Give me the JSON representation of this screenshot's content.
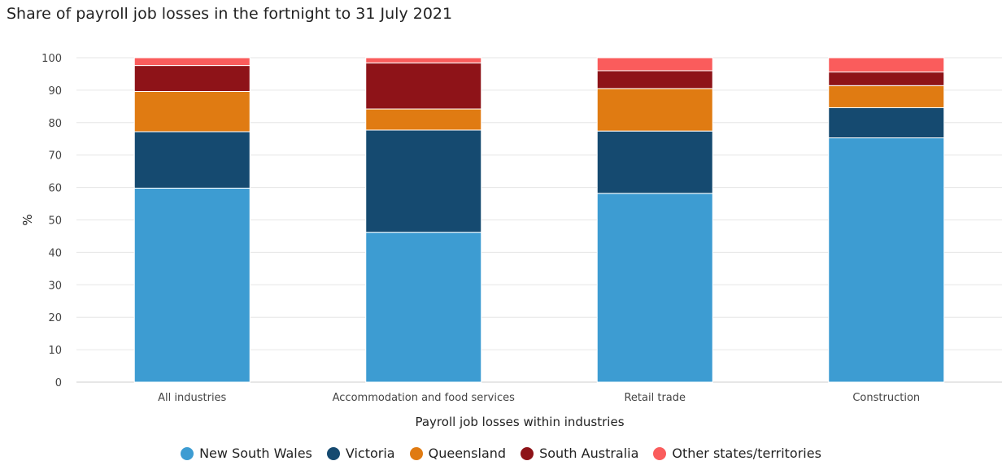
{
  "chart_data": {
    "type": "bar",
    "stacked": true,
    "title": "Share of payroll job losses in the fortnight to 31 July 2021",
    "xlabel": "Payroll job losses within industries",
    "ylabel": "%",
    "ylim": [
      0,
      100
    ],
    "yticks": [
      0,
      10,
      20,
      30,
      40,
      50,
      60,
      70,
      80,
      90,
      100
    ],
    "grid": true,
    "legend_position": "bottom",
    "categories": [
      "All industries",
      "Accommodation and food services",
      "Retail trade",
      "Construction"
    ],
    "series": [
      {
        "name": "New South Wales",
        "color": "#3d9cd2",
        "values": [
          59.8,
          46.2,
          58.2,
          75.3
        ]
      },
      {
        "name": "Victoria",
        "color": "#154a70",
        "values": [
          17.4,
          31.5,
          19.2,
          9.3
        ]
      },
      {
        "name": "Queensland",
        "color": "#e07b12",
        "values": [
          12.4,
          6.5,
          13.1,
          6.8
        ]
      },
      {
        "name": "South Australia",
        "color": "#8e1318",
        "values": [
          8.0,
          14.2,
          5.5,
          4.2
        ]
      },
      {
        "name": "Other states/territories",
        "color": "#fa5c5c",
        "values": [
          2.4,
          1.6,
          4.0,
          4.4
        ]
      }
    ]
  }
}
